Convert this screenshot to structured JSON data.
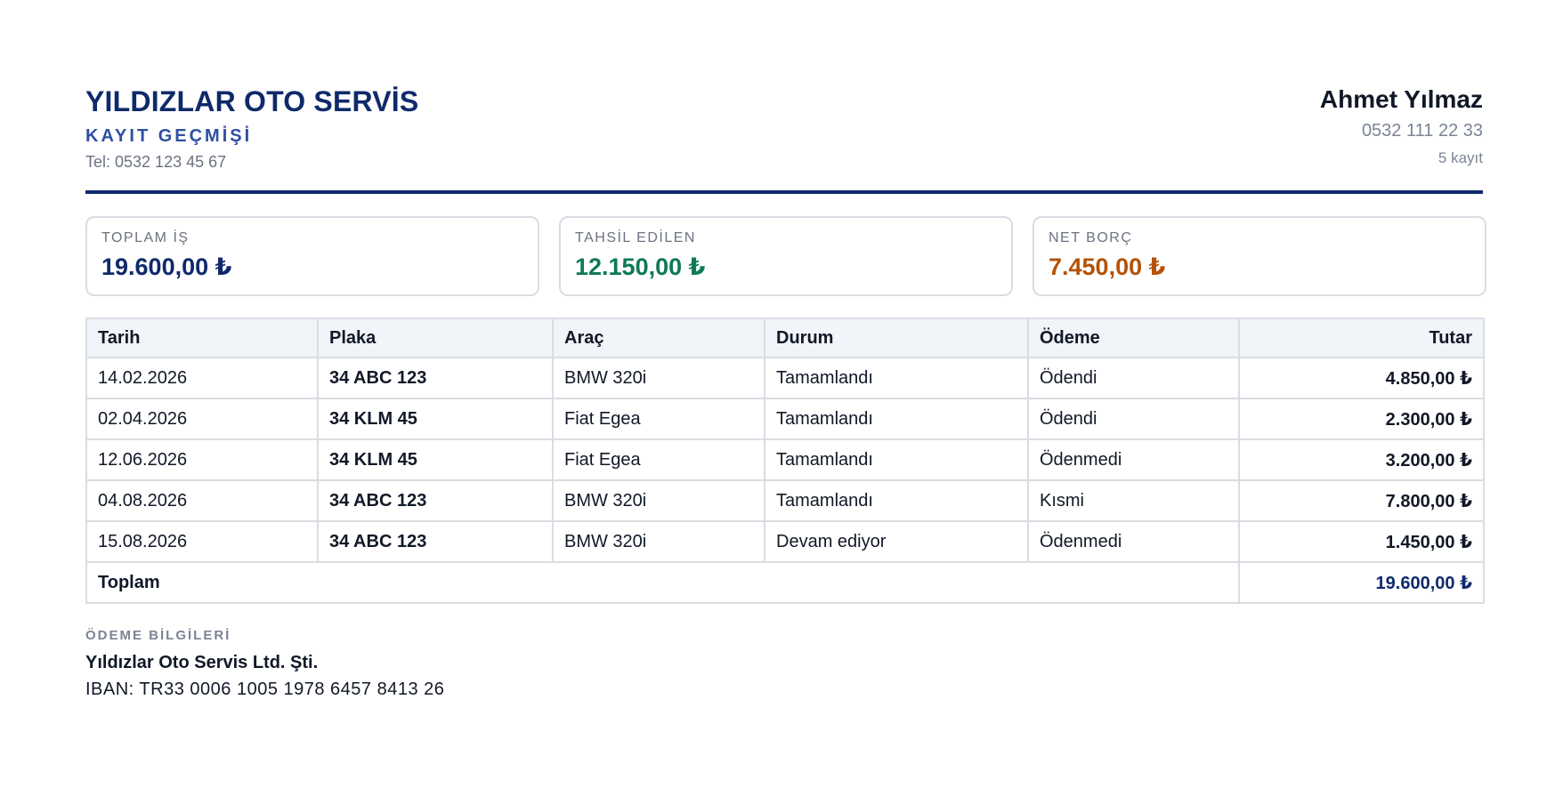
{
  "company": {
    "name": "YILDIZLAR OTO SERVİS",
    "doc_title": "KAYIT GEÇMİŞİ",
    "phone": "Tel: 0532 123 45 67"
  },
  "customer": {
    "name": "Ahmet Yılmaz",
    "phone": "0532 111 22 33",
    "record_count": "5 kayıt"
  },
  "summary": [
    {
      "label": "TOPLAM İŞ",
      "value": "19.600,00 ₺",
      "color": "#0f2a6b"
    },
    {
      "label": "TAHSİL EDİLEN",
      "value": "12.150,00 ₺",
      "color": "#0e7a55"
    },
    {
      "label": "NET BORÇ",
      "value": "7.450,00 ₺",
      "color": "#b45309"
    }
  ],
  "table": {
    "headers": {
      "date": "Tarih",
      "plate": "Plaka",
      "vehicle": "Araç",
      "status": "Durum",
      "payment": "Ödeme",
      "amount": "Tutar"
    },
    "rows": [
      {
        "date": "14.02.2026",
        "plate": "34 ABC 123",
        "vehicle": "BMW 320i",
        "status": "Tamamlandı",
        "payment": "Ödendi",
        "amount": "4.850,00 ₺"
      },
      {
        "date": "02.04.2026",
        "plate": "34 KLM 45",
        "vehicle": "Fiat Egea",
        "status": "Tamamlandı",
        "payment": "Ödendi",
        "amount": "2.300,00 ₺"
      },
      {
        "date": "12.06.2026",
        "plate": "34 KLM 45",
        "vehicle": "Fiat Egea",
        "status": "Tamamlandı",
        "payment": "Ödenmedi",
        "amount": "3.200,00 ₺"
      },
      {
        "date": "04.08.2026",
        "plate": "34 ABC 123",
        "vehicle": "BMW 320i",
        "status": "Tamamlandı",
        "payment": "Kısmi",
        "amount": "7.800,00 ₺"
      },
      {
        "date": "15.08.2026",
        "plate": "34 ABC 123",
        "vehicle": "BMW 320i",
        "status": "Devam ediyor",
        "payment": "Ödenmedi",
        "amount": "1.450,00 ₺"
      }
    ],
    "footer": {
      "label": "Toplam",
      "value": "19.600,00 ₺"
    }
  },
  "payment_info": {
    "label": "ÖDEME BİLGİLERİ",
    "company": "Yıldızlar Oto Servis Ltd. Şti.",
    "iban": "IBAN: TR33 0006 1005 1978 6457 8413 26"
  }
}
